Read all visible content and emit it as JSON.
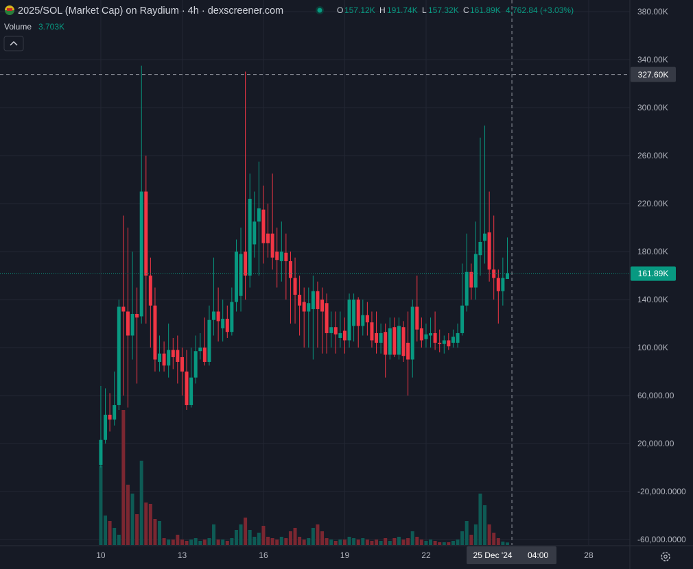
{
  "chart_data": {
    "type": "candlestick",
    "title": "2025/SOL (Market Cap) on Raydium · 4h · dexscreener.com",
    "ohlc_legend": [
      {
        "key": "O",
        "value": "157.12K"
      },
      {
        "key": "H",
        "value": "191.74K"
      },
      {
        "key": "L",
        "value": "157.32K"
      },
      {
        "key": "C",
        "value": "161.89K"
      }
    ],
    "change": "4,762.84 (+3.03%)",
    "volume_label": "Volume",
    "volume_value": "3.703K",
    "x": [
      10,
      10.167,
      10.333,
      10.5,
      10.667,
      10.833,
      11,
      11.167,
      11.333,
      11.5,
      11.667,
      11.833,
      12,
      12.167,
      12.333,
      12.5,
      12.667,
      12.833,
      13,
      13.167,
      13.333,
      13.5,
      13.667,
      13.833,
      14,
      14.167,
      14.333,
      14.5,
      14.667,
      14.833,
      15,
      15.167,
      15.333,
      15.5,
      15.667,
      15.833,
      16,
      16.167,
      16.333,
      16.5,
      16.667,
      16.833,
      17,
      17.167,
      17.333,
      17.5,
      17.667,
      17.833,
      18,
      18.167,
      18.333,
      18.5,
      18.667,
      18.833,
      19,
      19.167,
      19.333,
      19.5,
      19.667,
      19.833,
      20,
      20.167,
      20.333,
      20.5,
      20.667,
      20.833,
      21,
      21.167,
      21.333,
      21.5,
      21.667,
      21.833,
      22,
      22.167,
      22.333,
      22.5,
      22.667,
      22.833,
      23,
      23.167,
      23.333,
      23.5,
      23.667,
      23.833,
      24,
      24.167,
      24.333,
      24.5,
      24.667,
      24.833,
      25
    ],
    "open": [
      2000,
      23000,
      44000,
      40000,
      52000,
      134000,
      130000,
      110000,
      128000,
      126000,
      230000,
      160000,
      135000,
      88000,
      95000,
      85000,
      98000,
      98000,
      92000,
      80000,
      52000,
      75000,
      97000,
      100000,
      88000,
      123000,
      130000,
      116000,
      124000,
      113000,
      138000,
      143000,
      180000,
      160000,
      186000,
      205000,
      215000,
      195000,
      195000,
      180000,
      172000,
      179000,
      172000,
      158000,
      144000,
      138000,
      130000,
      132000,
      147000,
      140000,
      137000,
      112000,
      117000,
      108000,
      114000,
      106000,
      118000,
      140000,
      118000,
      127000,
      121000,
      112000,
      104000,
      113000,
      94000,
      117000,
      94000,
      117000,
      104000,
      90000,
      134000,
      116000,
      107000,
      110000,
      112000,
      104000,
      103000,
      106000,
      104000,
      104000,
      112000,
      135000,
      163000,
      150000,
      177000,
      189000,
      196000,
      165000,
      158000,
      147000,
      157120
    ],
    "high": [
      68000,
      66000,
      62000,
      80000,
      140000,
      210000,
      200000,
      180000,
      150000,
      335000,
      260000,
      175000,
      150000,
      110000,
      105000,
      120000,
      108000,
      110000,
      100000,
      98000,
      100000,
      110000,
      112000,
      125000,
      135000,
      175000,
      150000,
      140000,
      135000,
      150000,
      190000,
      200000,
      330000,
      245000,
      230000,
      255000,
      235000,
      220000,
      245000,
      200000,
      205000,
      195000,
      180000,
      175000,
      160000,
      150000,
      150000,
      160000,
      155000,
      150000,
      145000,
      130000,
      130000,
      130000,
      125000,
      145000,
      145000,
      142000,
      140000,
      138000,
      130000,
      130000,
      120000,
      120000,
      125000,
      125000,
      125000,
      122000,
      130000,
      140000,
      160000,
      125000,
      120000,
      125000,
      130000,
      115000,
      110000,
      112000,
      115000,
      120000,
      170000,
      195000,
      170000,
      205000,
      275000,
      285000,
      230000,
      210000,
      165000,
      175000,
      191740
    ],
    "low": [
      0,
      20000,
      30000,
      35000,
      48000,
      60000,
      50000,
      90000,
      70000,
      120000,
      120000,
      100000,
      80000,
      80000,
      80000,
      75000,
      82000,
      70000,
      60000,
      48000,
      50000,
      70000,
      90000,
      85000,
      85000,
      110000,
      105000,
      105000,
      108000,
      110000,
      130000,
      130000,
      140000,
      150000,
      175000,
      160000,
      170000,
      175000,
      165000,
      150000,
      155000,
      140000,
      120000,
      120000,
      110000,
      100000,
      100000,
      90000,
      100000,
      95000,
      95000,
      100000,
      95000,
      100000,
      95000,
      100000,
      105000,
      100000,
      110000,
      110000,
      100000,
      95000,
      95000,
      75000,
      90000,
      92000,
      90000,
      88000,
      60000,
      75000,
      105000,
      100000,
      100000,
      100000,
      98000,
      96000,
      95000,
      98000,
      100000,
      100000,
      110000,
      130000,
      140000,
      140000,
      160000,
      170000,
      155000,
      140000,
      120000,
      135000,
      157320
    ],
    "close": [
      23000,
      44000,
      40000,
      52000,
      134000,
      130000,
      110000,
      128000,
      125000,
      230000,
      160000,
      135000,
      90000,
      95000,
      85000,
      98000,
      92000,
      88000,
      80000,
      52000,
      75000,
      97000,
      100000,
      88000,
      123000,
      130000,
      122000,
      124000,
      113000,
      138000,
      180000,
      178000,
      160000,
      224000,
      205000,
      216000,
      187000,
      187000,
      175000,
      173000,
      180000,
      172000,
      158000,
      144000,
      135000,
      130000,
      137000,
      147000,
      132000,
      130000,
      112000,
      117000,
      111000,
      112000,
      106000,
      140000,
      140000,
      118000,
      127000,
      121000,
      106000,
      104000,
      112000,
      94000,
      116000,
      94000,
      118000,
      93000,
      90000,
      134000,
      115000,
      106000,
      111000,
      112000,
      104000,
      103000,
      106000,
      101000,
      109000,
      112000,
      135000,
      163000,
      150000,
      178000,
      188000,
      195000,
      165000,
      158000,
      147000,
      158000,
      161890
    ],
    "volume": [
      115000,
      43000,
      35000,
      25000,
      15000,
      197000,
      88000,
      75000,
      45000,
      123000,
      62000,
      60000,
      38000,
      35000,
      10000,
      8000,
      8000,
      15000,
      8000,
      6000,
      8000,
      10000,
      6000,
      8000,
      10000,
      30000,
      8000,
      8000,
      6000,
      10000,
      22000,
      30000,
      40000,
      22000,
      12000,
      18000,
      28000,
      12000,
      10000,
      8000,
      12000,
      10000,
      20000,
      25000,
      12000,
      8000,
      10000,
      25000,
      30000,
      20000,
      10000,
      8000,
      6000,
      8000,
      8000,
      12000,
      10000,
      8000,
      10000,
      8000,
      6000,
      8000,
      6000,
      10000,
      6000,
      10000,
      12000,
      8000,
      10000,
      20000,
      12000,
      8000,
      6000,
      8000,
      6000,
      4000,
      4000,
      4000,
      6000,
      8000,
      20000,
      35000,
      15000,
      30000,
      75000,
      58000,
      30000,
      18000,
      10000,
      5000,
      3703
    ],
    "up_color": "#089981",
    "down_color": "#f23645",
    "volume_up_color": "#0e5b55",
    "volume_down_color": "#7b2731",
    "xlim": [
      6.28,
      29.52
    ],
    "xticks": [
      10,
      13,
      16,
      19,
      22,
      28
    ],
    "ylim": [
      -64600,
      389700
    ],
    "volume_ylim": [
      0,
      795000
    ],
    "yticks": [
      {
        "value": 380000,
        "label": "380.00K"
      },
      {
        "value": 340000,
        "label": "340.00K"
      },
      {
        "value": 300000,
        "label": "300.00K"
      },
      {
        "value": 260000,
        "label": "260.00K"
      },
      {
        "value": 220000,
        "label": "220.00K"
      },
      {
        "value": 180000,
        "label": "180.00K"
      },
      {
        "value": 140000,
        "label": "140.00K"
      },
      {
        "value": 100000,
        "label": "100.00K"
      },
      {
        "value": 60000,
        "label": "60,000.00"
      },
      {
        "value": 20000,
        "label": "20,000.00"
      },
      {
        "value": -20000,
        "label": "-20,000.0000"
      },
      {
        "value": -60000,
        "label": "-60,000.0000"
      }
    ],
    "grid": true,
    "last_price": {
      "value": 161890,
      "label": "161.89K"
    },
    "crosshair": {
      "price": {
        "value": 327600,
        "label": "327.60K"
      },
      "x": 25.167,
      "date": "25 Dec '24",
      "time": "04:00"
    }
  }
}
